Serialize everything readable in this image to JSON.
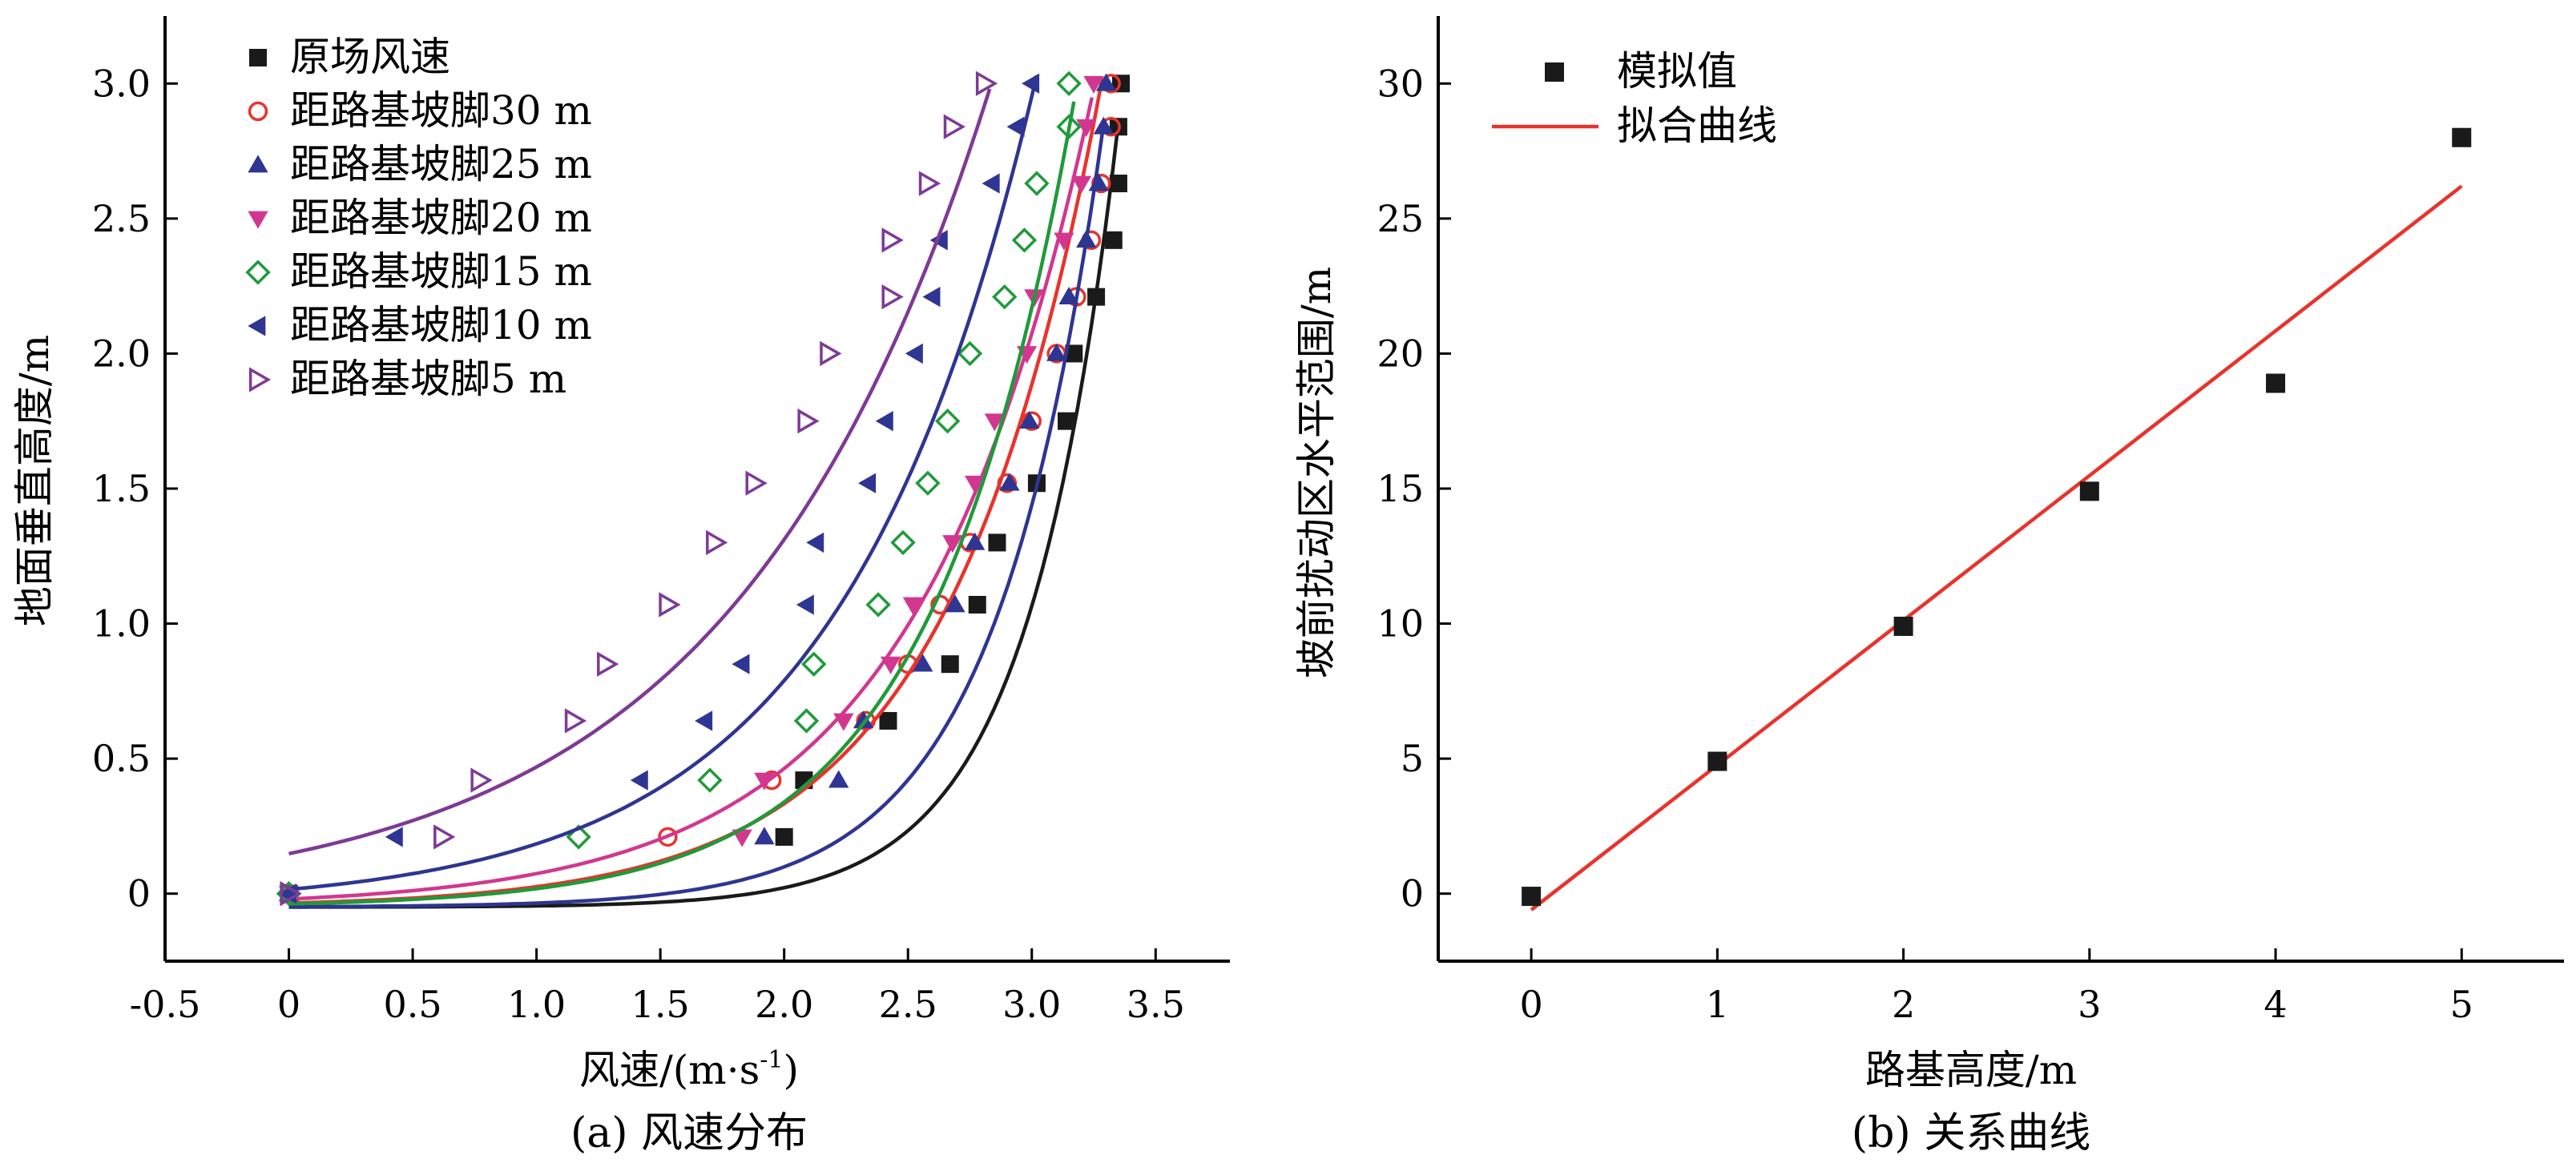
{
  "chart_data": [
    {
      "type": "scatter",
      "caption": "(a) 风速分布",
      "xlabel": "风速/(m·s",
      "xlabel_sup": "-1",
      "xlabel_close": ")",
      "ylabel": "地面垂直高度/m",
      "xlim": [
        -0.5,
        3.8
      ],
      "ylim": [
        -0.25,
        3.25
      ],
      "xticks": [
        -0.5,
        0,
        0.5,
        1.0,
        1.5,
        2.0,
        2.5,
        3.0,
        3.5
      ],
      "xtick_labels": [
        "-0.5",
        "0",
        "0.5",
        "1.0",
        "1.5",
        "2.0",
        "2.5",
        "3.0",
        "3.5"
      ],
      "yticks": [
        0,
        0.5,
        1.0,
        1.5,
        2.0,
        2.5,
        3.0
      ],
      "ytick_labels": [
        "0",
        "0.5",
        "1.0",
        "1.5",
        "2.0",
        "2.5",
        "3.0"
      ],
      "legend_position": "top-left",
      "series": [
        {
          "name": "原场风速",
          "marker": "square",
          "color": "#1a1a1a",
          "points": [
            [
              0,
              0
            ],
            [
              2.0,
              0.21
            ],
            [
              2.08,
              0.42
            ],
            [
              2.42,
              0.64
            ],
            [
              2.67,
              0.85
            ],
            [
              2.78,
              1.07
            ],
            [
              2.86,
              1.3
            ],
            [
              3.02,
              1.52
            ],
            [
              3.14,
              1.75
            ],
            [
              3.17,
              2.0
            ],
            [
              3.26,
              2.21
            ],
            [
              3.33,
              2.42
            ],
            [
              3.35,
              2.63
            ],
            [
              3.35,
              2.84
            ],
            [
              3.36,
              3.0
            ]
          ],
          "fit": {
            "a": 0.0003,
            "b": 2.74
          }
        },
        {
          "name": "距路基坡脚30 m",
          "marker": "circle-open",
          "color": "#e8332c",
          "points": [
            [
              0,
              0
            ],
            [
              1.53,
              0.21
            ],
            [
              1.95,
              0.42
            ],
            [
              2.33,
              0.64
            ],
            [
              2.5,
              0.85
            ],
            [
              2.63,
              1.07
            ],
            [
              2.75,
              1.3
            ],
            [
              2.9,
              1.52
            ],
            [
              3.0,
              1.75
            ],
            [
              3.1,
              2.0
            ],
            [
              3.18,
              2.21
            ],
            [
              3.24,
              2.42
            ],
            [
              3.28,
              2.63
            ],
            [
              3.32,
              2.84
            ],
            [
              3.32,
              3.0
            ]
          ],
          "fit": {
            "a": 0.015,
            "b": 1.62
          }
        },
        {
          "name": "距路基坡脚25 m",
          "marker": "triangle-up",
          "color": "#2e3592",
          "points": [
            [
              0,
              0
            ],
            [
              1.92,
              0.21
            ],
            [
              2.22,
              0.42
            ],
            [
              2.32,
              0.64
            ],
            [
              2.56,
              0.85
            ],
            [
              2.69,
              1.07
            ],
            [
              2.77,
              1.3
            ],
            [
              2.91,
              1.52
            ],
            [
              2.99,
              1.75
            ],
            [
              3.1,
              2.0
            ],
            [
              3.15,
              2.21
            ],
            [
              3.22,
              2.42
            ],
            [
              3.27,
              2.63
            ],
            [
              3.29,
              2.84
            ],
            [
              3.3,
              3.0
            ]
          ],
          "fit": {
            "a": 0.0015,
            "b": 2.3
          }
        },
        {
          "name": "距路基坡脚20 m",
          "marker": "triangle-down",
          "color": "#d2378f",
          "points": [
            [
              0,
              0
            ],
            [
              1.83,
              0.21
            ],
            [
              1.92,
              0.42
            ],
            [
              2.24,
              0.64
            ],
            [
              2.43,
              0.85
            ],
            [
              2.52,
              1.07
            ],
            [
              2.68,
              1.3
            ],
            [
              2.77,
              1.52
            ],
            [
              2.85,
              1.75
            ],
            [
              2.98,
              2.0
            ],
            [
              3.01,
              2.21
            ],
            [
              3.13,
              2.42
            ],
            [
              3.2,
              2.63
            ],
            [
              3.22,
              2.84
            ],
            [
              3.25,
              3.0
            ]
          ],
          "fit": {
            "a": 0.03,
            "b": 1.42
          }
        },
        {
          "name": "距路基坡脚15 m",
          "marker": "diamond-open",
          "color": "#1f9a3a",
          "points": [
            [
              0,
              0
            ],
            [
              1.17,
              0.21
            ],
            [
              1.7,
              0.42
            ],
            [
              2.09,
              0.64
            ],
            [
              2.12,
              0.85
            ],
            [
              2.38,
              1.07
            ],
            [
              2.48,
              1.3
            ],
            [
              2.58,
              1.52
            ],
            [
              2.66,
              1.75
            ],
            [
              2.75,
              2.0
            ],
            [
              2.89,
              2.21
            ],
            [
              2.97,
              2.42
            ],
            [
              3.02,
              2.63
            ],
            [
              3.15,
              2.84
            ],
            [
              3.15,
              3.0
            ]
          ],
          "fit": {
            "a": 0.012,
            "b": 1.74
          }
        },
        {
          "name": "距路基坡脚10 m",
          "marker": "triangle-left",
          "color": "#2e3592",
          "points": [
            [
              0,
              0
            ],
            [
              0.43,
              0.21
            ],
            [
              1.42,
              0.42
            ],
            [
              1.68,
              0.64
            ],
            [
              1.83,
              0.85
            ],
            [
              2.09,
              1.07
            ],
            [
              2.13,
              1.3
            ],
            [
              2.34,
              1.52
            ],
            [
              2.41,
              1.75
            ],
            [
              2.53,
              2.0
            ],
            [
              2.6,
              2.21
            ],
            [
              2.63,
              2.42
            ],
            [
              2.84,
              2.63
            ],
            [
              2.94,
              2.84
            ],
            [
              3.0,
              3.0
            ]
          ],
          "fit": {
            "a": 0.0655,
            "b": 1.275
          }
        },
        {
          "name": "距路基坡脚5 m",
          "marker": "triangle-right-open",
          "color": "#7e3a95",
          "points": [
            [
              0,
              0
            ],
            [
              0.62,
              0.21
            ],
            [
              0.77,
              0.42
            ],
            [
              1.15,
              0.64
            ],
            [
              1.28,
              0.85
            ],
            [
              1.53,
              1.07
            ],
            [
              1.72,
              1.3
            ],
            [
              1.88,
              1.52
            ],
            [
              2.09,
              1.75
            ],
            [
              2.18,
              2.0
            ],
            [
              2.43,
              2.21
            ],
            [
              2.43,
              2.42
            ],
            [
              2.58,
              2.63
            ],
            [
              2.68,
              2.84
            ],
            [
              2.81,
              3.0
            ]
          ],
          "fit": {
            "a": 0.198,
            "b": 0.964
          }
        }
      ]
    },
    {
      "type": "scatter",
      "caption": "(b) 关系曲线",
      "xlabel": "路基高度/m",
      "ylabel": "坡前扰动区水平范围/m",
      "xlim": [
        -0.5,
        5.55
      ],
      "ylim": [
        -2.5,
        32.5
      ],
      "xticks": [
        0,
        1,
        2,
        3,
        4,
        5
      ],
      "xtick_labels": [
        "0",
        "1",
        "2",
        "3",
        "4",
        "5"
      ],
      "yticks": [
        0,
        5,
        10,
        15,
        20,
        25,
        30
      ],
      "ytick_labels": [
        "0",
        "5",
        "10",
        "15",
        "20",
        "25",
        "30"
      ],
      "legend_position": "top-left",
      "series": [
        {
          "name": "模拟值",
          "marker": "square",
          "color": "#1a1a1a",
          "x": [
            0,
            1,
            2,
            3,
            4,
            5
          ],
          "y": [
            -0.1,
            4.9,
            9.9,
            14.9,
            18.9,
            28.0
          ]
        },
        {
          "name": "拟合曲线",
          "marker": "line",
          "color": "#e8332c",
          "x": [
            0,
            5
          ],
          "y": [
            -0.6,
            26.2
          ]
        }
      ]
    }
  ]
}
